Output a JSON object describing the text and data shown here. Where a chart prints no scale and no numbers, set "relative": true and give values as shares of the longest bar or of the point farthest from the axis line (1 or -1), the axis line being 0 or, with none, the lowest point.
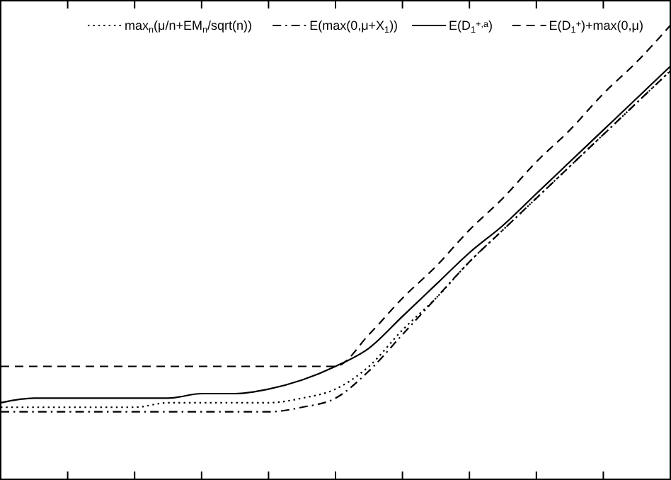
{
  "chart_data": {
    "type": "line",
    "relative": true,
    "legend": "top",
    "categories": [
      null,
      null,
      null,
      null,
      null,
      null,
      null,
      null,
      null,
      null,
      null,
      null,
      null,
      null,
      null,
      null,
      null,
      null,
      null,
      null,
      null
    ],
    "series": [
      {
        "name": "max$_{n}$(μ/n+EM$_{n}$/sqrt(n))",
        "color": "#000000",
        "line_style": "dotted",
        "values": [
          0.16,
          0.16,
          0.16,
          0.16,
          0.16,
          0.17,
          0.17,
          0.17,
          0.17,
          0.18,
          0.2,
          0.25,
          0.33,
          0.4,
          0.48,
          0.55,
          0.62,
          0.69,
          0.76,
          0.83,
          0.9
        ]
      },
      {
        "name": "E(max(0,μ+X$_{1}$))",
        "color": "#000000",
        "line_style": "dashdot",
        "values": [
          0.15,
          0.15,
          0.15,
          0.15,
          0.15,
          0.15,
          0.15,
          0.15,
          0.15,
          0.16,
          0.18,
          0.24,
          0.32,
          0.4,
          0.48,
          0.55,
          0.62,
          0.69,
          0.76,
          0.83,
          0.9
        ]
      },
      {
        "name": "E(D$_{1}$$^{+,a}$)",
        "color": "#000000",
        "line_style": "solid",
        "values": [
          0.17,
          0.18,
          0.18,
          0.18,
          0.18,
          0.18,
          0.19,
          0.19,
          0.2,
          0.22,
          0.25,
          0.29,
          0.36,
          0.43,
          0.5,
          0.56,
          0.63,
          0.7,
          0.77,
          0.84,
          0.91
        ]
      },
      {
        "name": "E(D$_{1}$$^{+}$)+max(0,μ)",
        "color": "#000000",
        "line_style": "dashed",
        "values": [
          0.25,
          0.25,
          0.25,
          0.25,
          0.25,
          0.25,
          0.25,
          0.25,
          0.25,
          0.25,
          0.25,
          0.32,
          0.4,
          0.47,
          0.55,
          0.62,
          0.7,
          0.77,
          0.85,
          0.92,
          1
        ]
      }
    ]
  }
}
